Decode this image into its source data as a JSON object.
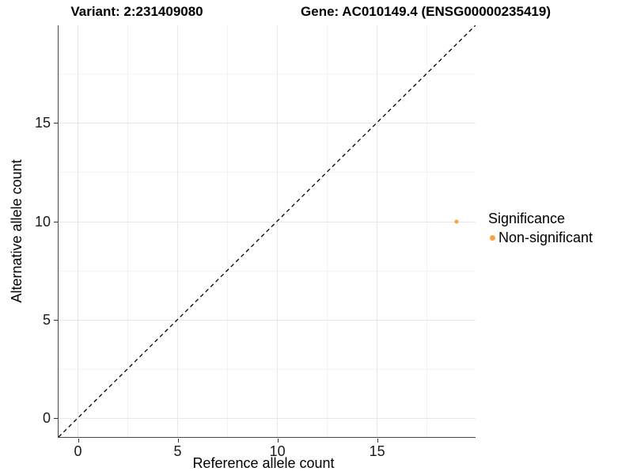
{
  "chart_data": {
    "type": "scatter",
    "titles": {
      "variant": "Variant: 2:231409080",
      "gene": "Gene: AC010149.4 (ENSG00000235419)"
    },
    "xlabel": "Reference allele count",
    "ylabel": "Alternative allele count",
    "xlim": [
      -0.95,
      19.95
    ],
    "ylim": [
      -0.95,
      19.95
    ],
    "x_ticks": [
      0,
      5,
      10,
      15
    ],
    "y_ticks": [
      0,
      5,
      10,
      15
    ],
    "minor_gridlines": [
      2.5,
      7.5,
      12.5,
      17.5
    ],
    "grid": "major-and-minor",
    "legend_position": "right",
    "identity_line": {
      "equation": "y = x",
      "style": "dashed",
      "color": "#000000"
    },
    "series": [
      {
        "name": "Non-significant",
        "color": "#F9A242",
        "points": [
          {
            "x": 19,
            "y": 10
          }
        ]
      }
    ],
    "legend": {
      "title": "Significance",
      "items": [
        {
          "label": "Non-significant",
          "color": "#F9A242"
        }
      ]
    }
  }
}
